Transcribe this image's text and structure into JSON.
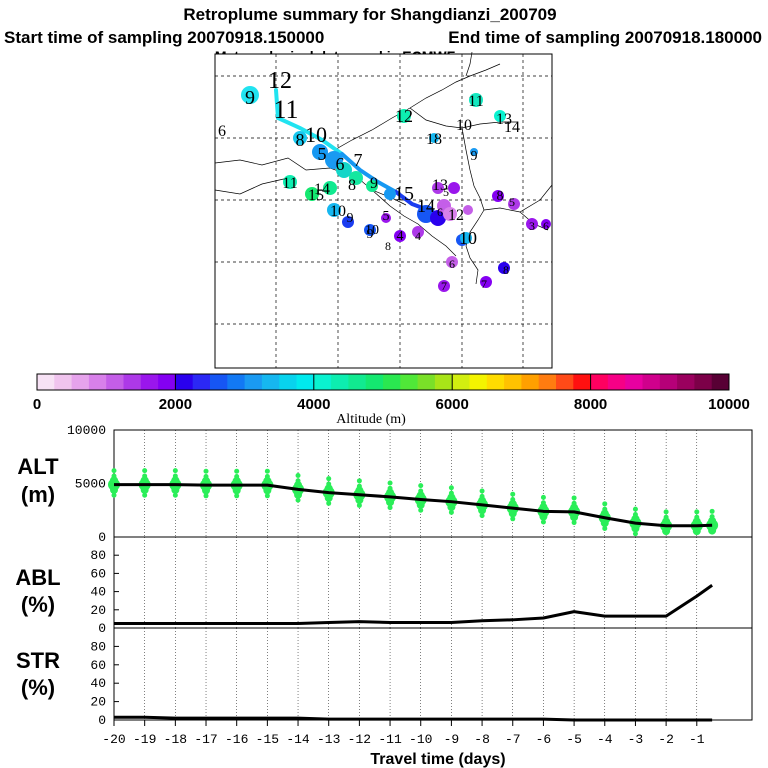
{
  "header": {
    "title": "Retroplume summary for Shangdianzi_200709",
    "start": "Start time of sampling 20070918.150000",
    "end": "End time of sampling 20070918.180000",
    "met": "Meteorological data used is ECMWF"
  },
  "colorbar": {
    "label": "Altitude (m)",
    "ticks": [
      "0",
      "2000",
      "4000",
      "6000",
      "8000",
      "10000"
    ],
    "colors": [
      "#f7e2f5",
      "#f0c4ee",
      "#e6a3ec",
      "#d880ea",
      "#c45ee8",
      "#ad39e8",
      "#9a16ec",
      "#8400f2",
      "#2a00ee",
      "#2b28f5",
      "#1656f4",
      "#1279f4",
      "#1a9af2",
      "#16b7f0",
      "#08d3ee",
      "#00eaee",
      "#0af2d0",
      "#0deeb0",
      "#11ea90",
      "#14e870",
      "#2ae850",
      "#50e838",
      "#7ae028",
      "#a8e418",
      "#d2ee10",
      "#f4f400",
      "#ffdc00",
      "#ffc200",
      "#ffa000",
      "#ff7c10",
      "#ff4a18",
      "#ff1010",
      "#ff0060",
      "#f60086",
      "#e800a0",
      "#d0008c",
      "#b60078",
      "#9a005e",
      "#7c0048",
      "#580034"
    ]
  },
  "map": {
    "labels": [
      "9",
      "12",
      "11",
      "6",
      "10",
      "12",
      "18",
      "11",
      "13",
      "14",
      "10",
      "9",
      "8",
      "5",
      "6",
      "7",
      "8",
      "9",
      "11",
      "15",
      "14",
      "10",
      "9",
      "10",
      "5",
      "15",
      "14",
      "13",
      "12",
      "8",
      "5",
      "4",
      "9",
      "8",
      "7",
      "6",
      "4",
      "3",
      "10",
      "7",
      "8",
      "6",
      "6",
      "5"
    ]
  },
  "chart_data": [
    {
      "type": "line",
      "name": "ALT",
      "title": "ALT",
      "ylabel": "(m)",
      "ylim": [
        0,
        10000
      ],
      "yticks": [
        "0",
        "5000",
        "10000"
      ],
      "x": [
        -20,
        -19,
        -18,
        -17,
        -16,
        -15,
        -14,
        -13,
        -12,
        -11,
        -10,
        -9,
        -8,
        -7,
        -6,
        -5,
        -4,
        -3,
        -2,
        -1,
        -0.5
      ],
      "series": [
        {
          "name": "ALT",
          "values": [
            4900,
            4900,
            4900,
            4850,
            4850,
            4850,
            4450,
            4150,
            3950,
            3750,
            3500,
            3300,
            3000,
            2700,
            2400,
            2350,
            1800,
            1300,
            1050,
            1050,
            1100
          ]
        }
      ]
    },
    {
      "type": "line",
      "name": "ABL",
      "title": "ABL",
      "ylabel": "(%)",
      "ylim": [
        0,
        100
      ],
      "yticks": [
        "0",
        "20",
        "40",
        "60",
        "80"
      ],
      "x": [
        -20,
        -19,
        -18,
        -17,
        -16,
        -15,
        -14,
        -13,
        -12,
        -11,
        -10,
        -9,
        -8,
        -7,
        -6,
        -5,
        -4,
        -3,
        -2,
        -1,
        -0.5
      ],
      "series": [
        {
          "name": "ABL",
          "values": [
            5,
            5,
            5,
            5,
            5,
            5,
            5,
            6,
            7,
            6,
            6,
            6,
            8,
            9,
            11,
            18,
            13,
            13,
            13,
            35,
            47
          ]
        }
      ]
    },
    {
      "type": "line",
      "name": "STR",
      "title": "STR",
      "ylabel": "(%)",
      "xlabel": "Travel time (days)",
      "ylim": [
        0,
        100
      ],
      "yticks": [
        "0",
        "20",
        "40",
        "60",
        "80"
      ],
      "xlim": [
        -20,
        0.8
      ],
      "xticks": [
        "-20",
        "-19",
        "-18",
        "-17",
        "-16",
        "-15",
        "-14",
        "-13",
        "-12",
        "-11",
        "-10",
        "-9",
        "-8",
        "-7",
        "-6",
        "-5",
        "-4",
        "-3",
        "-2",
        "-1"
      ],
      "x": [
        -20,
        -19,
        -18,
        -17,
        -16,
        -15,
        -14,
        -13,
        -12,
        -11,
        -10,
        -9,
        -8,
        -7,
        -6,
        -5,
        -4,
        -3,
        -2,
        -1,
        -0.5
      ],
      "series": [
        {
          "name": "STR",
          "values": [
            3,
            3,
            2,
            2,
            2,
            2,
            2,
            1,
            1,
            1,
            1,
            1,
            1,
            1,
            1,
            0,
            0,
            0,
            0,
            0,
            0
          ]
        }
      ]
    }
  ]
}
